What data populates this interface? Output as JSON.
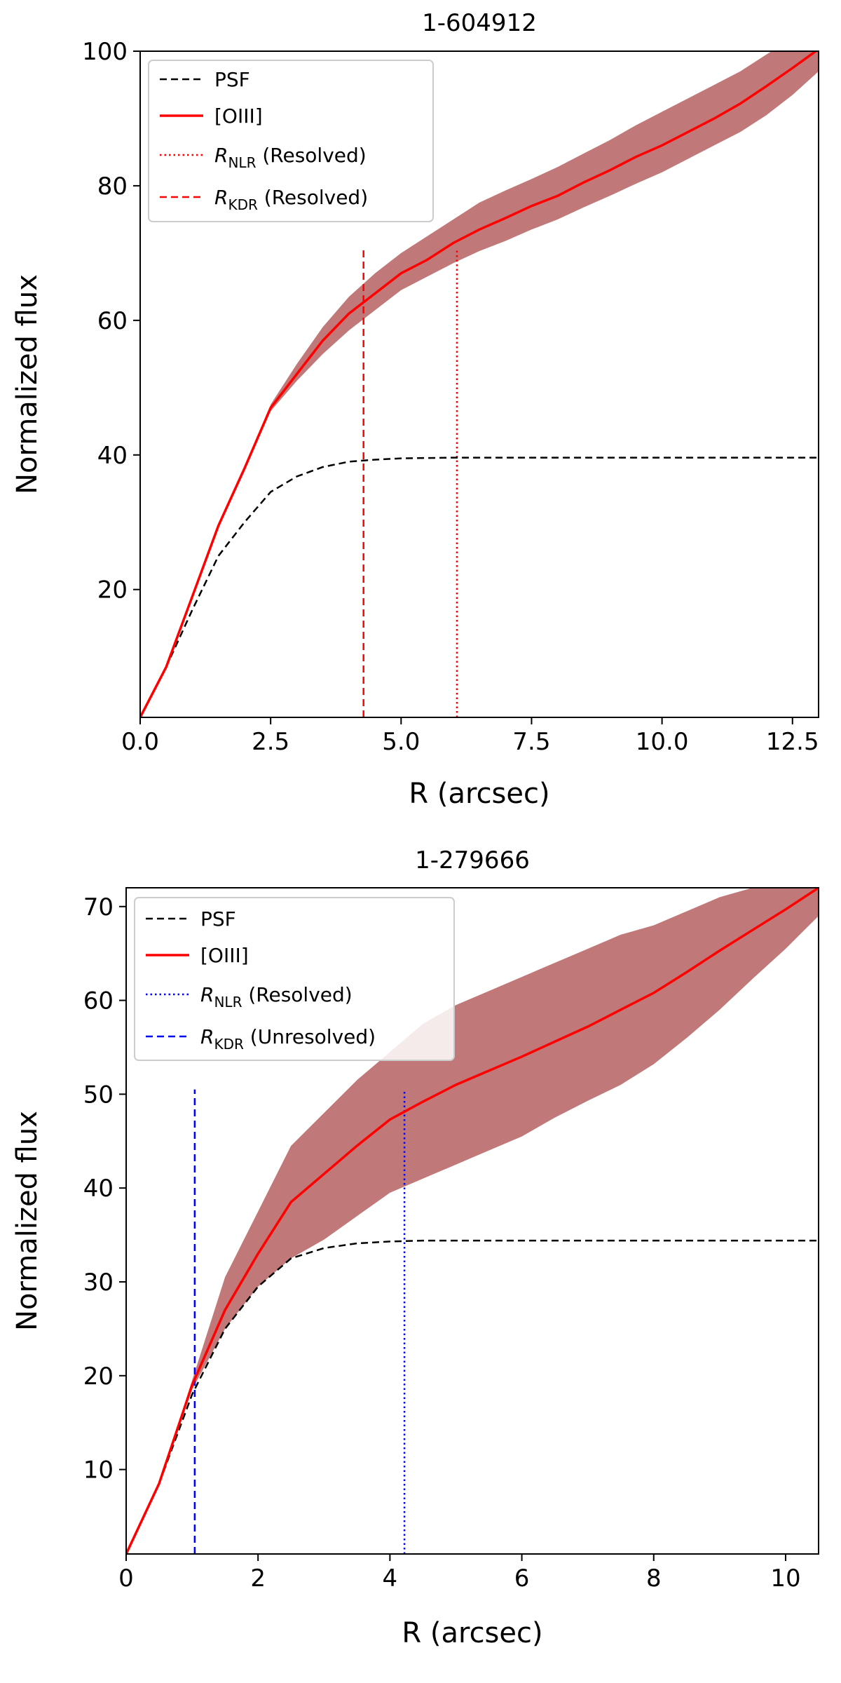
{
  "chart_data": [
    {
      "type": "line",
      "title": "1-604912",
      "xlabel": "R (arcsec)",
      "ylabel": "Normalized flux",
      "xlim": [
        0,
        13
      ],
      "ylim": [
        1,
        100
      ],
      "xticks": [
        0.0,
        2.5,
        5.0,
        7.5,
        10.0,
        12.5
      ],
      "xtick_labels": [
        "0.0",
        "2.5",
        "5.0",
        "7.5",
        "10.0",
        "12.5"
      ],
      "yticks": [
        20,
        40,
        60,
        80,
        100
      ],
      "ytick_labels": [
        "20",
        "40",
        "60",
        "80",
        "100"
      ],
      "grid": false,
      "legend_position": "top-left",
      "legend": [
        {
          "label": "PSF",
          "sub": "",
          "suffix": "",
          "style": "dashed",
          "color": "#000000"
        },
        {
          "label": "[OIII]",
          "sub": "",
          "suffix": "",
          "style": "solid",
          "color": "#ff0000"
        },
        {
          "label": "R",
          "sub": "NLR",
          "suffix": " (Resolved)",
          "style": "dotted",
          "color": "#ff0000"
        },
        {
          "label": "R",
          "sub": "KDR",
          "suffix": " (Resolved)",
          "style": "dashed",
          "color": "#ff0000"
        }
      ],
      "series": [
        {
          "name": "PSF",
          "style": "dashed",
          "color": "#000000",
          "x": [
            0,
            0.5,
            1.0,
            1.5,
            2.0,
            2.5,
            3.0,
            3.5,
            4.0,
            4.5,
            5.0,
            6.0,
            7.0,
            8.0,
            9.0,
            10.0,
            11.0,
            12.0,
            13.0
          ],
          "y": [
            1,
            8.5,
            17,
            25,
            30,
            34.5,
            36.8,
            38.2,
            39.0,
            39.3,
            39.5,
            39.6,
            39.6,
            39.6,
            39.6,
            39.6,
            39.6,
            39.6,
            39.6
          ]
        },
        {
          "name": "[OIII]",
          "style": "solid",
          "color": "#ff0000",
          "x": [
            0,
            0.5,
            1.0,
            1.5,
            2.0,
            2.5,
            3.0,
            3.5,
            4.0,
            4.5,
            5.0,
            5.5,
            6.0,
            6.5,
            7.0,
            7.5,
            8.0,
            8.5,
            9.0,
            9.5,
            10.0,
            10.5,
            11.0,
            11.5,
            12.0,
            12.5,
            13.0
          ],
          "y": [
            1,
            8.5,
            19,
            29.5,
            38,
            47,
            52,
            57,
            61,
            64,
            67,
            69,
            71.5,
            73.5,
            75.2,
            77,
            78.5,
            80.5,
            82.3,
            84.3,
            86,
            88,
            90,
            92.2,
            94.8,
            97.5,
            100.3
          ],
          "lower": [
            1,
            8.5,
            19,
            29.5,
            37.8,
            46.5,
            51,
            55,
            58.5,
            61.5,
            64.5,
            66.5,
            68.5,
            70.3,
            71.8,
            73.5,
            75,
            76.8,
            78.5,
            80.3,
            82,
            84,
            86,
            88,
            90.5,
            93.5,
            97
          ],
          "upper": [
            1,
            8.5,
            19,
            29.5,
            38.2,
            47.5,
            53.5,
            59,
            63.5,
            67,
            70,
            72.5,
            75,
            77.5,
            79.3,
            81,
            82.8,
            84.8,
            86.8,
            89,
            91,
            93,
            95,
            97,
            99.5,
            102,
            104
          ]
        }
      ],
      "band_color": "#c07879",
      "vlines": [
        {
          "name": "R_NLR",
          "x": 6.07,
          "y_top": 70.5,
          "style": "dotted",
          "color": "#ff0000"
        },
        {
          "name": "R_KDR",
          "x": 4.28,
          "y_top": 70.5,
          "style": "dashed",
          "color": "#ff0000"
        }
      ]
    },
    {
      "type": "line",
      "title": "1-279666",
      "xlabel": "R (arcsec)",
      "ylabel": "Normalized flux",
      "xlim": [
        0,
        10.5
      ],
      "ylim": [
        1,
        72
      ],
      "xticks": [
        0,
        2,
        4,
        6,
        8,
        10
      ],
      "xtick_labels": [
        "0",
        "2",
        "4",
        "6",
        "8",
        "10"
      ],
      "yticks": [
        10,
        20,
        30,
        40,
        50,
        60,
        70
      ],
      "ytick_labels": [
        "10",
        "20",
        "30",
        "40",
        "50",
        "60",
        "70"
      ],
      "grid": false,
      "legend_position": "top-left",
      "legend": [
        {
          "label": "PSF",
          "sub": "",
          "suffix": "",
          "style": "dashed",
          "color": "#000000"
        },
        {
          "label": "[OIII]",
          "sub": "",
          "suffix": "",
          "style": "solid",
          "color": "#ff0000"
        },
        {
          "label": "R",
          "sub": "NLR",
          "suffix": " (Resolved)",
          "style": "dotted",
          "color": "#0000ff"
        },
        {
          "label": "R",
          "sub": "KDR",
          "suffix": " (Unresolved)",
          "style": "dashed",
          "color": "#0000ff"
        }
      ],
      "series": [
        {
          "name": "PSF",
          "style": "dashed",
          "color": "#000000",
          "x": [
            0,
            0.5,
            1.0,
            1.5,
            2.0,
            2.5,
            3.0,
            3.5,
            4.0,
            4.5,
            5.0,
            6.0,
            7.0,
            8.0,
            9.0,
            10.0,
            10.5
          ],
          "y": [
            1,
            8.5,
            18,
            25,
            29.5,
            32.5,
            33.6,
            34.1,
            34.3,
            34.4,
            34.4,
            34.4,
            34.4,
            34.4,
            34.4,
            34.4,
            34.4
          ]
        },
        {
          "name": "[OIII]",
          "style": "solid",
          "color": "#ff0000",
          "x": [
            0,
            0.5,
            1.0,
            1.5,
            2.0,
            2.5,
            3.0,
            3.5,
            4.0,
            4.5,
            5.0,
            5.5,
            6.0,
            6.5,
            7.0,
            7.5,
            8.0,
            8.5,
            9.0,
            9.5,
            10.0,
            10.5
          ],
          "y": [
            1,
            8.5,
            19,
            27,
            33,
            38.5,
            41.5,
            44.5,
            47.3,
            49.2,
            51,
            52.5,
            54,
            55.6,
            57.2,
            59,
            60.8,
            63,
            65.3,
            67.5,
            69.7,
            72
          ],
          "lower": [
            1,
            8.5,
            18.5,
            25,
            29.5,
            32.5,
            34.5,
            37,
            39.5,
            41,
            42.5,
            44,
            45.5,
            47.5,
            49.3,
            51,
            53.2,
            56,
            59,
            62.3,
            65.5,
            69
          ],
          "upper": [
            1,
            8.5,
            19.5,
            30.5,
            37.5,
            44.5,
            48,
            51.5,
            54.5,
            57.5,
            59.5,
            61,
            62.5,
            64,
            65.5,
            67,
            68,
            69.5,
            71,
            72,
            73,
            74
          ]
        }
      ],
      "band_color": "#c07879",
      "vlines": [
        {
          "name": "R_NLR",
          "x": 4.22,
          "y_top": 50.5,
          "style": "dotted",
          "color": "#0000ff"
        },
        {
          "name": "R_KDR",
          "x": 1.04,
          "y_top": 50.5,
          "style": "dashed",
          "color": "#0000ff"
        }
      ]
    }
  ]
}
